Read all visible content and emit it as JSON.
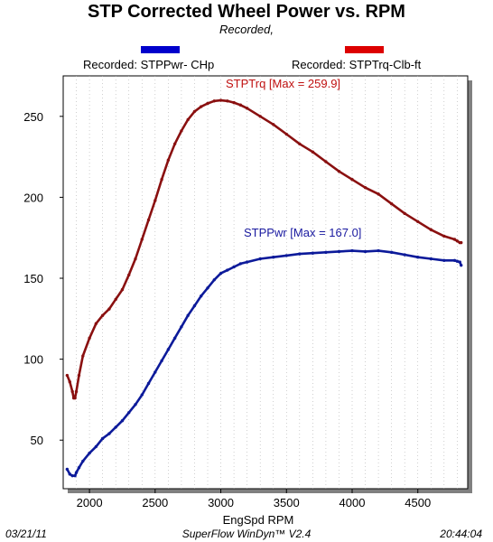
{
  "chart_data": {
    "type": "line",
    "title": "STP Corrected Wheel Power vs. RPM",
    "subtitle": "Recorded,",
    "xlabel": "EngSpd  RPM",
    "ylabel": "",
    "xlim": [
      1800,
      4880
    ],
    "ylim": [
      20,
      275
    ],
    "xticks": [
      2000,
      2500,
      3000,
      3500,
      4000,
      4500
    ],
    "yticks": [
      50,
      100,
      150,
      200,
      250
    ],
    "grid": "vertical-dotted",
    "legend_placement": "top",
    "series": [
      {
        "name": "Recorded: STPPwr- CHp",
        "color": "#0c1a9a",
        "legend_color": "#0000cc",
        "annotation": "STPPwr [Max = 167.0]",
        "x": [
          1830,
          1850,
          1870,
          1890,
          1900,
          1920,
          1950,
          2000,
          2050,
          2100,
          2150,
          2200,
          2250,
          2300,
          2350,
          2400,
          2450,
          2500,
          2550,
          2600,
          2650,
          2700,
          2750,
          2800,
          2850,
          2900,
          2950,
          3000,
          3050,
          3100,
          3150,
          3200,
          3300,
          3400,
          3500,
          3600,
          3700,
          3800,
          3900,
          4000,
          4100,
          4200,
          4300,
          4400,
          4500,
          4600,
          4700,
          4780,
          4800,
          4820,
          4830
        ],
        "y": [
          32,
          29,
          28,
          28,
          30,
          33,
          37,
          42,
          46,
          51,
          54,
          58,
          62,
          67,
          72,
          78,
          85,
          92,
          99,
          106,
          113,
          120,
          127,
          133,
          139,
          144,
          149,
          153,
          155,
          157,
          159,
          160,
          162,
          163,
          164,
          165,
          165.5,
          166,
          166.5,
          167,
          166.5,
          167,
          166,
          164.5,
          163,
          162,
          161,
          161,
          160.5,
          160,
          158
        ]
      },
      {
        "name": "Recorded: STPTrq-Clb-ft",
        "color": "#8a1010",
        "legend_color": "#dd0000",
        "annotation": "STPTrq [Max = 259.9]",
        "x": [
          1830,
          1850,
          1870,
          1880,
          1890,
          1900,
          1920,
          1950,
          2000,
          2050,
          2100,
          2150,
          2200,
          2250,
          2300,
          2350,
          2400,
          2450,
          2500,
          2550,
          2600,
          2650,
          2700,
          2750,
          2800,
          2850,
          2900,
          2950,
          3000,
          3050,
          3100,
          3150,
          3200,
          3300,
          3400,
          3500,
          3600,
          3700,
          3800,
          3900,
          4000,
          4100,
          4200,
          4300,
          4400,
          4500,
          4600,
          4700,
          4780,
          4800,
          4820,
          4830
        ],
        "y": [
          90,
          86,
          80,
          76,
          76,
          80,
          90,
          102,
          113,
          122,
          127,
          131,
          137,
          143,
          152,
          162,
          174,
          186,
          198,
          211,
          223,
          233,
          241,
          248,
          253,
          256,
          258,
          259.5,
          259.9,
          259.5,
          258.5,
          257,
          255,
          250,
          245,
          239,
          233,
          228,
          222,
          216,
          211,
          206,
          202,
          196,
          190,
          185,
          180,
          176,
          174,
          173,
          172,
          172
        ]
      }
    ]
  },
  "footer": {
    "date": "03/21/11",
    "software": "SuperFlow WinDyn™ V2.4",
    "time": "20:44:04"
  }
}
